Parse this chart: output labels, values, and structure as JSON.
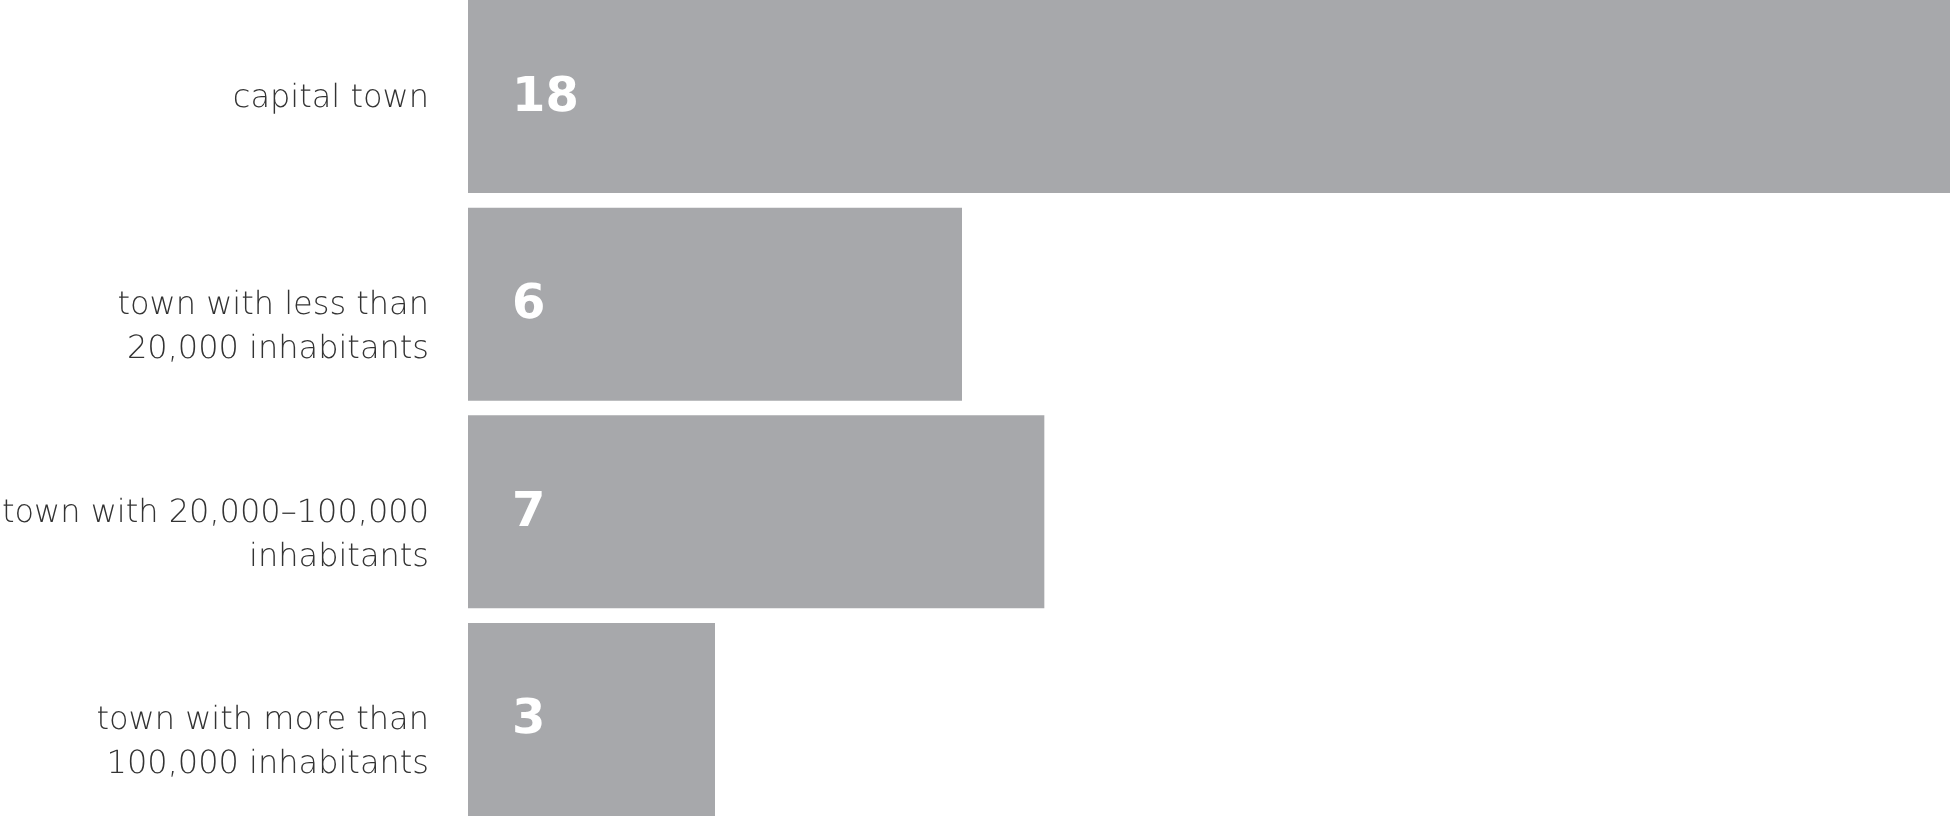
{
  "chart_data": {
    "type": "bar",
    "orientation": "horizontal",
    "categories": [
      "capital town",
      "town with less than 20,000 inhabitants",
      "town with 20,000–100,000 inhabitants",
      "town with more than 100,000 inhabitants"
    ],
    "values": [
      18,
      6,
      7,
      3
    ],
    "color": "#a7a8ab",
    "data_labels": true,
    "tick_labels": "y"
  }
}
